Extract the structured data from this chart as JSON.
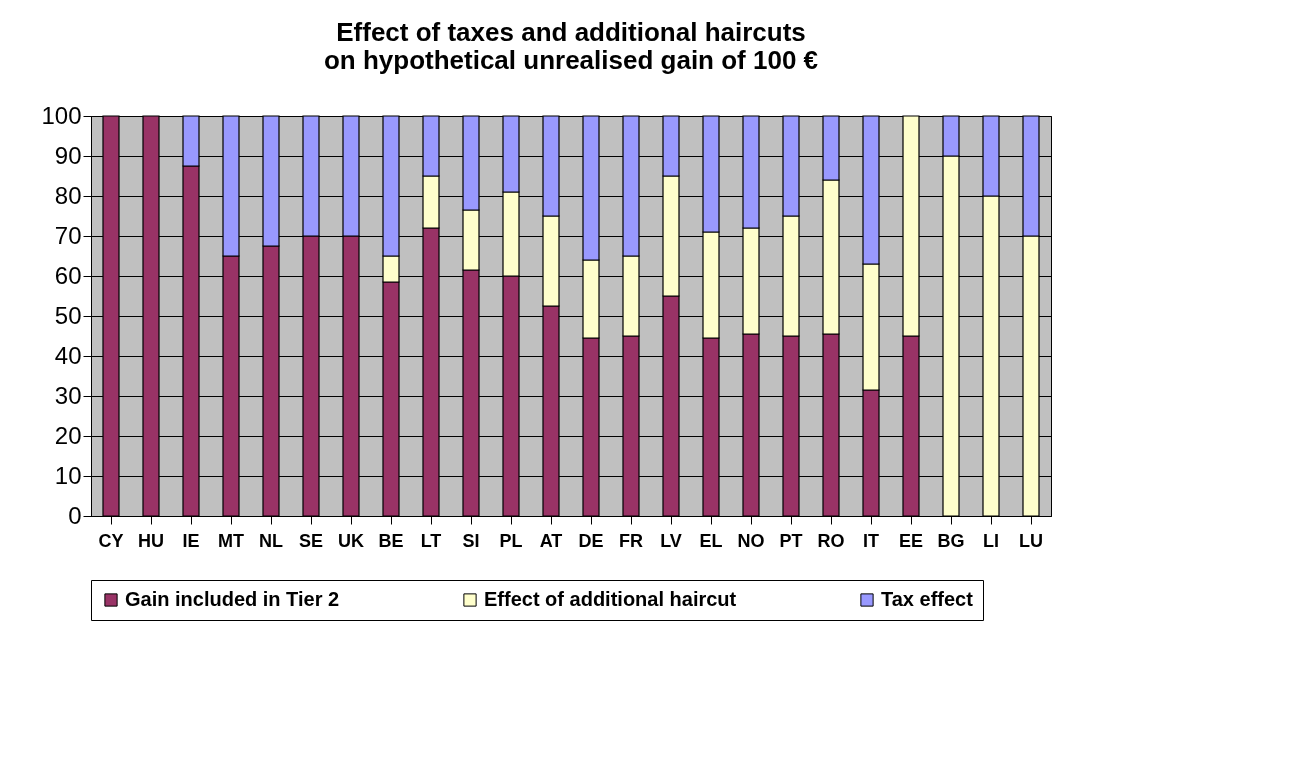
{
  "chart_data": {
    "type": "bar",
    "title": "Effect of taxes and additional haircuts\non hypothetical unrealised gain of 100 €",
    "categories": [
      "CY",
      "HU",
      "IE",
      "MT",
      "NL",
      "SE",
      "UK",
      "BE",
      "LT",
      "SI",
      "PL",
      "AT",
      "DE",
      "FR",
      "LV",
      "EL",
      "NO",
      "PT",
      "RO",
      "IT",
      "EE",
      "BG",
      "LI",
      "LU"
    ],
    "stacked": true,
    "series": [
      {
        "name": "Gain included in Tier 2",
        "color": "#993366",
        "values": [
          100,
          100,
          87.5,
          65,
          67.5,
          70,
          70,
          58.5,
          72,
          61.5,
          60,
          52.5,
          44.5,
          45,
          55,
          44.5,
          45.5,
          45,
          45.5,
          31.5,
          45,
          null,
          null,
          null
        ]
      },
      {
        "name": "Effect of additional haircut",
        "color": "#ffffcc",
        "values": [
          null,
          null,
          null,
          null,
          null,
          null,
          null,
          6.5,
          13,
          15,
          21,
          22.5,
          19.5,
          20,
          30,
          26.5,
          26.5,
          30,
          38.5,
          31.5,
          55,
          90,
          80,
          70
        ]
      },
      {
        "name": "Tax effect",
        "color": "#9999ff",
        "values": [
          null,
          null,
          12.5,
          35,
          32.5,
          30,
          30,
          35,
          15,
          23.5,
          19,
          25,
          36,
          35,
          15,
          29,
          28,
          25,
          16,
          37,
          null,
          10,
          20,
          30
        ]
      }
    ],
    "ylim": [
      0,
      100
    ],
    "yticks": [
      0,
      10,
      20,
      30,
      40,
      50,
      60,
      70,
      80,
      90,
      100
    ],
    "grid": "y",
    "legend": "bottom"
  }
}
